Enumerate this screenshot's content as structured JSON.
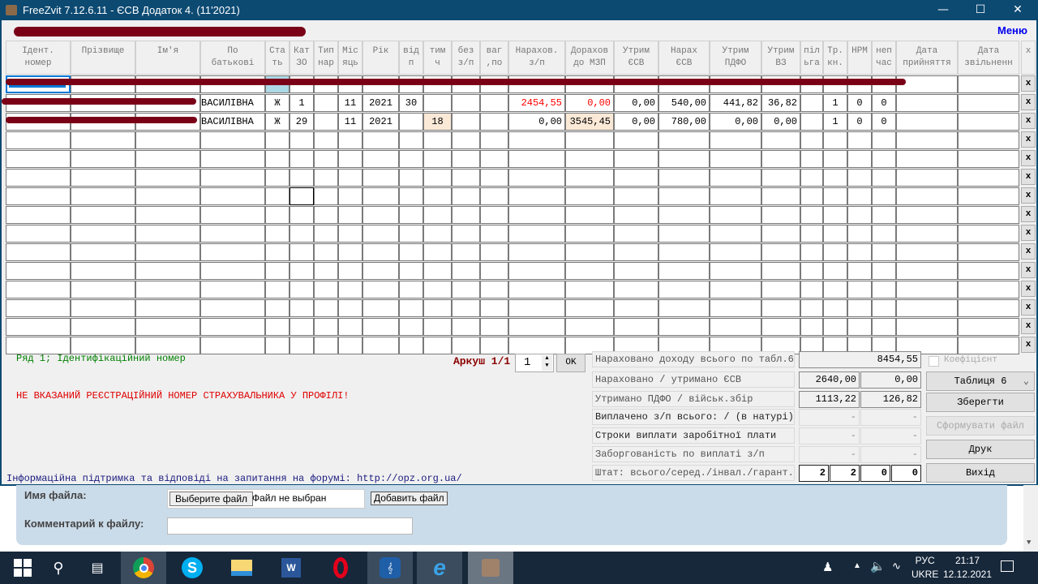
{
  "window": {
    "title": "FreeZvit 7.12.6.11 - ЄСВ Додаток 4. (11'2021)",
    "menu": "Меню"
  },
  "columns": [
    "Ідент.\nномер",
    "Прізвище",
    "Ім'я",
    "По\nбатькові",
    "Ста\nть",
    "Кат\nЗО",
    "Тип\nнар",
    "Міс\nяць",
    "Рік",
    "від\nп",
    "тим\nч",
    "без\nз/п",
    "ваг\n,по",
    "Нарахов.\nз/п",
    "Дорахов\nдо МЗП",
    "Утрим\nЄСВ",
    "Нарах\nЄСВ",
    "Утрим\nПДФО",
    "Утрим\nВЗ",
    "піл\nьга",
    "Тр.\nкн.",
    "НРМ",
    "неп\nчас",
    "Дата\nприйняття",
    "Дата\nзвільненн",
    "x"
  ],
  "rows": [
    [
      "",
      "",
      "",
      "",
      "",
      "",
      "",
      "",
      "",
      "",
      "",
      "",
      "",
      "",
      "",
      "",
      "",
      "",
      "",
      "",
      "",
      "",
      "",
      "",
      ""
    ],
    [
      "",
      "",
      "",
      "ВАСИЛІВНА",
      "Ж",
      "1",
      "",
      "11",
      "2021",
      "30",
      "",
      "",
      "",
      "2454,55",
      "0,00",
      "0,00",
      "540,00",
      "441,82",
      "36,82",
      "",
      "1",
      "0",
      "0",
      "",
      ""
    ],
    [
      "",
      "",
      "",
      "ВАСИЛІВНА",
      "Ж",
      "29",
      "",
      "11",
      "2021",
      "",
      "18",
      "",
      "",
      "0,00",
      "3545,45",
      "0,00",
      "780,00",
      "0,00",
      "0,00",
      "",
      "1",
      "0",
      "0",
      "",
      ""
    ]
  ],
  "row_delete_label": "x",
  "status": {
    "row_info": "Ряд 1; Ідентифікаційний номер",
    "error": "НЕ ВКАЗАНИЙ РЕЄСТРАЦІЙНИЙ НОМЕР СТРАХУВАЛЬНИКА У ПРОФІЛІ!",
    "support": "Інформаційна підтримка та відповіді на запитання на форумі: http://opz.org.ua/"
  },
  "sheet": {
    "label": "Аркуш 1/1",
    "value": "1",
    "ok": "OK"
  },
  "summary": [
    {
      "label": "Нараховано доходу всього по табл.6",
      "values": [
        "8454,55"
      ]
    },
    {
      "label": "Нараховано / утримано ЄСВ",
      "values": [
        "2640,00",
        "0,00"
      ]
    },
    {
      "label": "Утримано ПДФО / військ.збір",
      "values": [
        "1113,22",
        "126,82"
      ]
    },
    {
      "label": "Виплачено з/п всього: / (в натурі)",
      "values": [
        "-",
        "-"
      ]
    },
    {
      "label": "Строки виплати заробітної плати",
      "values": [
        "-",
        "-"
      ]
    },
    {
      "label": "Заборгованість по виплаті з/п",
      "values": [
        "-",
        "-"
      ]
    },
    {
      "label": "Штат: всього/серед./інвал./гарант.",
      "values": [
        "2",
        "2",
        "0",
        "0"
      ]
    }
  ],
  "actions": {
    "coef": "Коефіцієнт",
    "table_select": "Таблиця 6",
    "save": "Зберегти",
    "generate": "Сформувати файл",
    "print": "Друк",
    "exit": "Вихід"
  },
  "web": {
    "file_label": "Имя файла:",
    "choose": "Выберите файл",
    "no_file": "Файл не выбран",
    "add": "Добавить файл",
    "comment_label": "Комментарий к файлу:"
  },
  "tray": {
    "lang1": "РУС",
    "lang2": "UKRE",
    "time": "21:17",
    "date": "12.12.2021"
  },
  "colors": {
    "titlebar": "#0c4a72",
    "red_value": "#ff0000",
    "highlight": "#fbe9d7",
    "taskbar": "#17283b"
  }
}
